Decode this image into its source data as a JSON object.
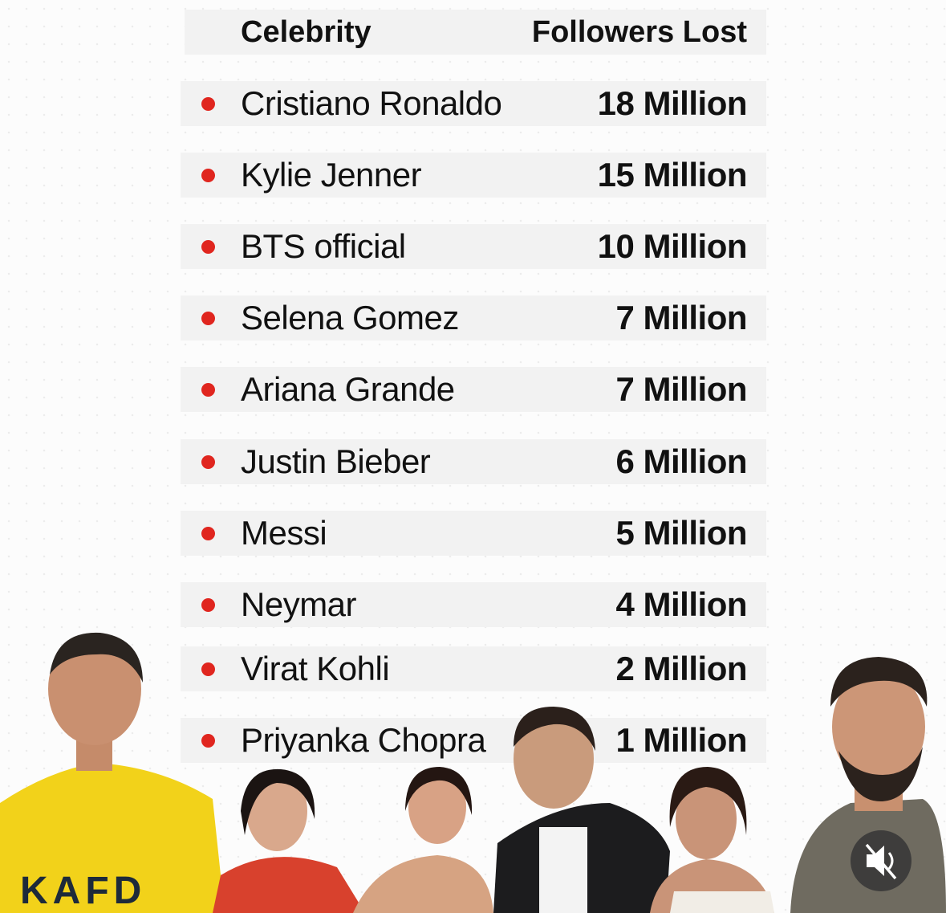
{
  "table": {
    "columns": [
      "Celebrity",
      "Followers Lost"
    ],
    "rows": [
      [
        "Cristiano Ronaldo",
        "18 Million"
      ],
      [
        "Kylie Jenner",
        "15 Million"
      ],
      [
        "BTS official",
        "10 Million"
      ],
      [
        "Selena Gomez",
        "7 Million"
      ],
      [
        "Ariana Grande",
        "7 Million"
      ],
      [
        "Justin Bieber",
        "6 Million"
      ],
      [
        "Messi",
        "5 Million"
      ],
      [
        "Neymar",
        "4 Million"
      ],
      [
        "Virat Kohli",
        "2 Million"
      ],
      [
        "Priyanka Chopra",
        "1 Million"
      ]
    ]
  }
}
